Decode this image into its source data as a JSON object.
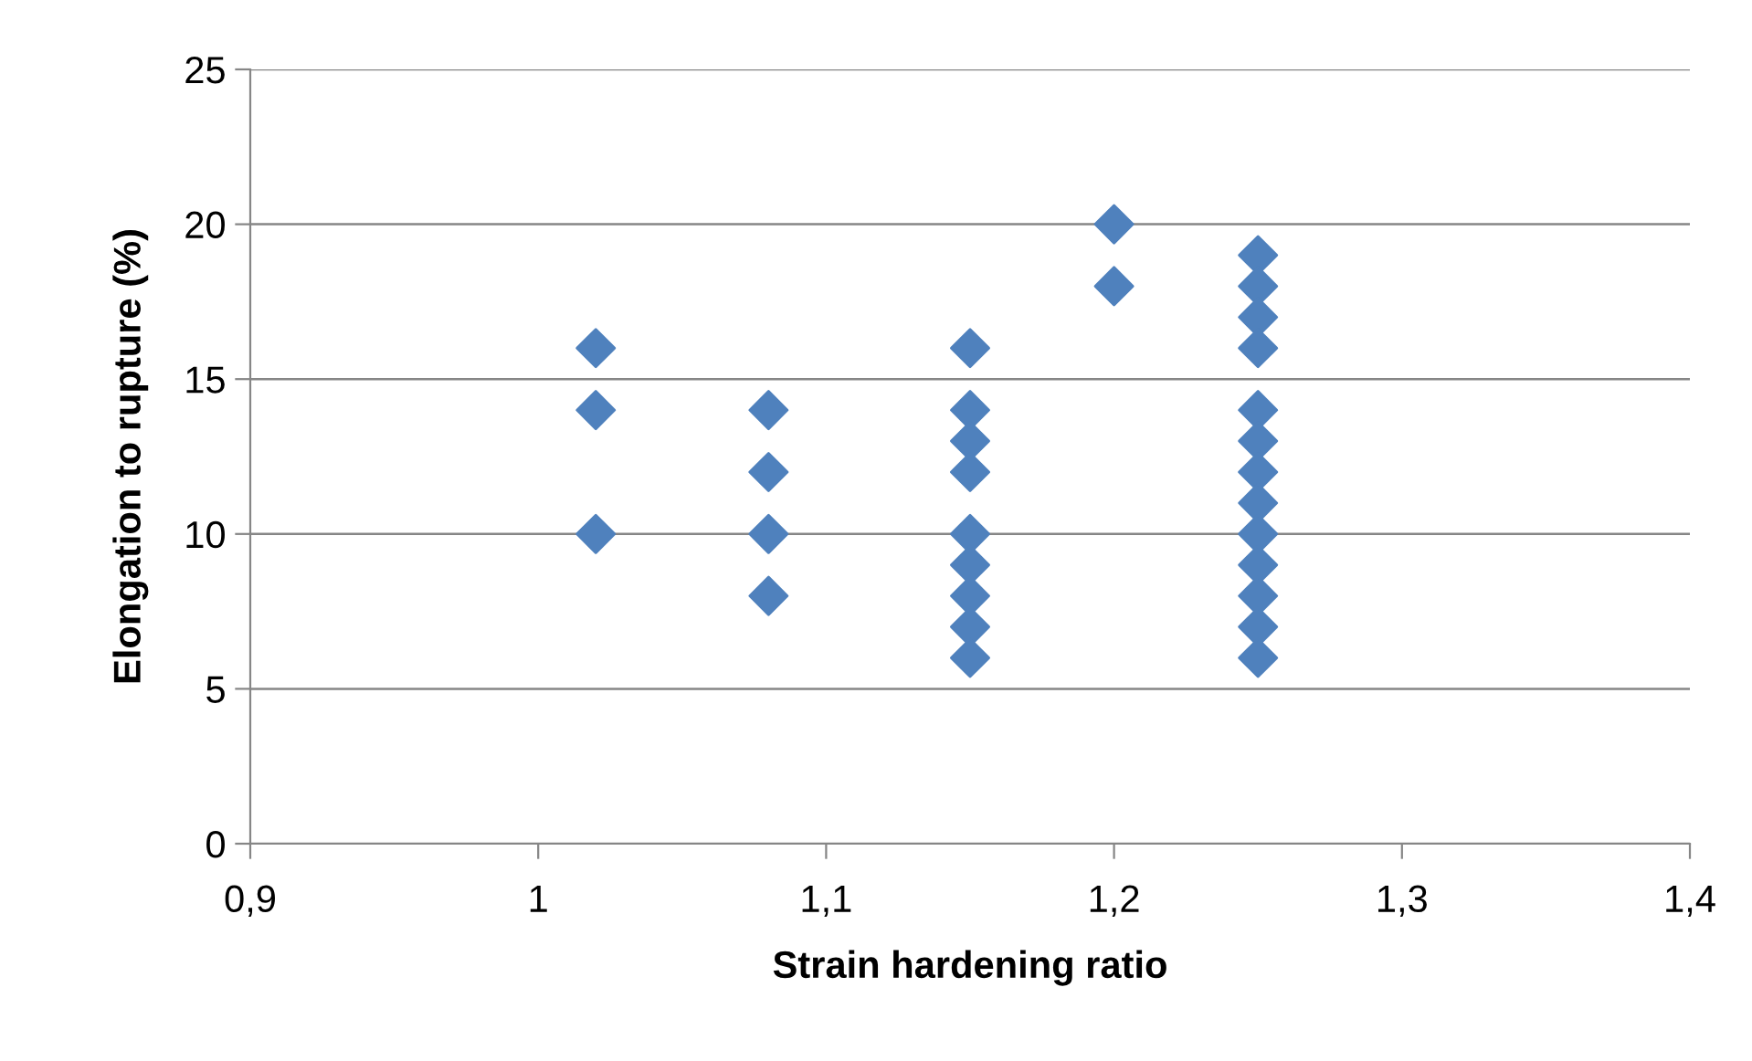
{
  "chart_data": {
    "type": "scatter",
    "xlabel": "Strain hardening ratio",
    "ylabel": "Elongation to rupture (%)",
    "series": [
      {
        "color": "#4f81bd",
        "x": [
          1.02,
          1.02,
          1.02,
          1.08,
          1.08,
          1.08,
          1.08,
          1.15,
          1.15,
          1.15,
          1.15,
          1.15,
          1.15,
          1.15,
          1.15,
          1.15,
          1.2,
          1.2,
          1.25,
          1.25,
          1.25,
          1.25,
          1.25,
          1.25,
          1.25,
          1.25,
          1.25,
          1.25,
          1.25,
          1.25,
          1.25
        ],
        "values": [
          16,
          14,
          10,
          14,
          12,
          10,
          8,
          16,
          14,
          13,
          12,
          10,
          9,
          8,
          7,
          6,
          20,
          18,
          19,
          18,
          17,
          16,
          14,
          13,
          12,
          11,
          10,
          9,
          8,
          7,
          6
        ]
      }
    ],
    "xlim": [
      0.9,
      1.4
    ],
    "xticks": [
      {
        "value": 0.9,
        "label": "0,9"
      },
      1,
      {
        "value": 1.1,
        "label": "1,1"
      },
      {
        "value": 1.2,
        "label": "1,2"
      },
      {
        "value": 1.3,
        "label": "1,3"
      },
      {
        "value": 1.4,
        "label": "1,4"
      }
    ],
    "ylim": [
      0,
      25
    ],
    "yticks": [
      0,
      5,
      10,
      15,
      20,
      25
    ],
    "grid": "y",
    "marker": "diamond",
    "legend": false
  }
}
